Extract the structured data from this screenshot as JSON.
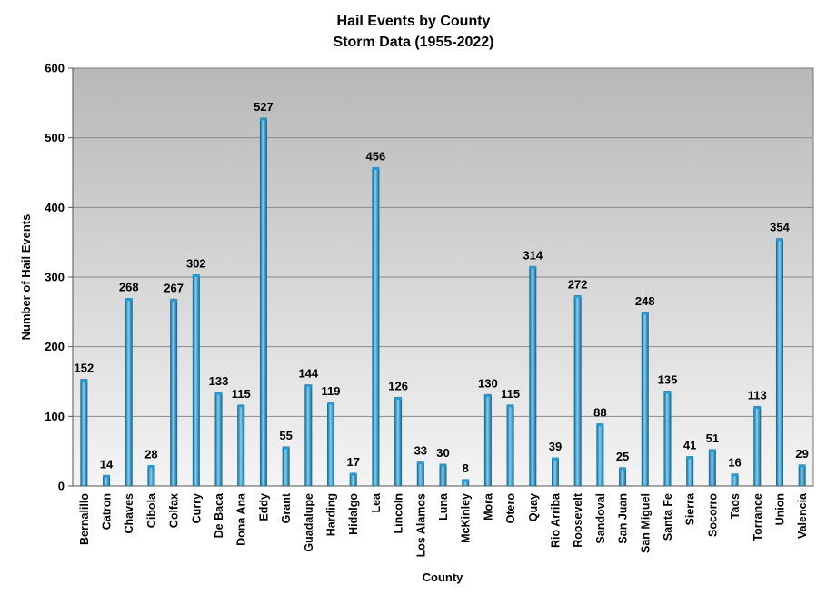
{
  "chart_data": {
    "type": "bar",
    "title": "Hail Events by County",
    "subtitle": "Storm Data (1955-2022)",
    "xlabel": "County",
    "ylabel": "Number of Hail Events",
    "ylim": [
      0,
      600
    ],
    "yticks": [
      0,
      100,
      200,
      300,
      400,
      500,
      600
    ],
    "grid": true,
    "legend": "none",
    "categories": [
      "Bernalillo",
      "Catron",
      "Chaves",
      "Cibola",
      "Colfax",
      "Curry",
      "De Baca",
      "Dona Ana",
      "Eddy",
      "Grant",
      "Guadalupe",
      "Harding",
      "Hidalgo",
      "Lea",
      "Lincoln",
      "Los Alamos",
      "Luna",
      "McKinley",
      "Mora",
      "Otero",
      "Quay",
      "Rio Arriba",
      "Roosevelt",
      "Sandoval",
      "San Juan",
      "San Miguel",
      "Santa Fe",
      "Sierra",
      "Socorro",
      "Taos",
      "Torrance",
      "Union",
      "Valencia"
    ],
    "values": [
      152,
      14,
      268,
      28,
      267,
      302,
      133,
      115,
      527,
      55,
      144,
      119,
      17,
      456,
      126,
      33,
      30,
      8,
      130,
      115,
      314,
      39,
      272,
      88,
      25,
      248,
      135,
      41,
      51,
      16,
      113,
      354,
      29
    ],
    "colors": {
      "bar_dark": "#0a5f8a",
      "bar_mid": "#1f9ad6",
      "bar_light": "#7fd0f5",
      "plot_bg_top": "#b8b8b8",
      "plot_bg_bottom": "#f4f4f4",
      "gridline": "#8a8a8a"
    }
  }
}
